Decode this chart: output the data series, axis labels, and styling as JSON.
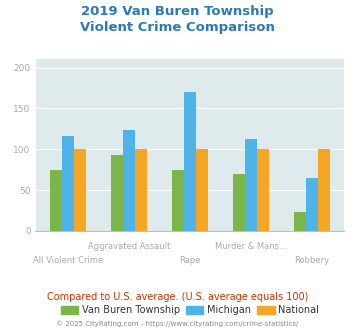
{
  "title_line1": "2019 Van Buren Township",
  "title_line2": "Violent Crime Comparison",
  "categories": [
    "All Violent Crime",
    "Aggravated Assault",
    "Rape",
    "Murder & Mans...",
    "Robbery"
  ],
  "series": {
    "Van Buren Township": [
      75,
      93,
      75,
      70,
      23
    ],
    "Michigan": [
      116,
      123,
      170,
      112,
      65
    ],
    "National": [
      100,
      100,
      100,
      100,
      100
    ]
  },
  "colors": {
    "Van Buren Township": "#7ab648",
    "Michigan": "#4db3e8",
    "National": "#f5a623"
  },
  "ylim": [
    0,
    210
  ],
  "yticks": [
    0,
    50,
    100,
    150,
    200
  ],
  "background_color": "#ffffff",
  "plot_bg_color": "#deeaec",
  "title_color": "#2a7ab8",
  "tick_color": "#aaaaaa",
  "legend_note": "Compared to U.S. average. (U.S. average equals 100)",
  "footnote": "© 2025 CityRating.com - https://www.cityrating.com/crime-statistics/",
  "bar_width": 0.2
}
